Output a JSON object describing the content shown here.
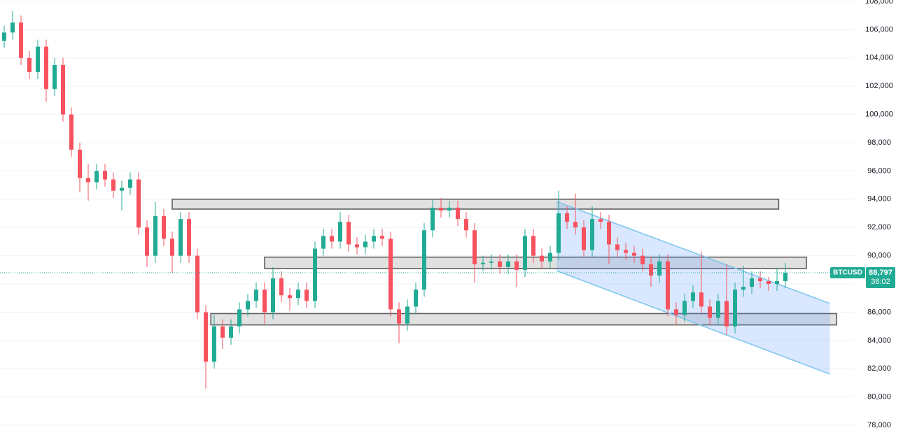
{
  "chart_data": {
    "type": "candlestick",
    "up_color": "#22ab94",
    "down_color": "#f7525f",
    "ylim": [
      77310,
      108100
    ],
    "yticks": [
      {
        "value": 78000,
        "label": "78,000"
      },
      {
        "value": 80000,
        "label": "80,000"
      },
      {
        "value": 82000,
        "label": "82,000"
      },
      {
        "value": 84000,
        "label": "84,000"
      },
      {
        "value": 86000,
        "label": "86,000"
      },
      {
        "value": 88000,
        "label": "88,000"
      },
      {
        "value": 90000,
        "label": "90,000"
      },
      {
        "value": 92000,
        "label": "92,000"
      },
      {
        "value": 94000,
        "label": "94,000"
      },
      {
        "value": 96000,
        "label": "96,000"
      },
      {
        "value": 98000,
        "label": "98,000"
      },
      {
        "value": 100000,
        "label": "100,000"
      },
      {
        "value": 102000,
        "label": "102,000"
      },
      {
        "value": 104000,
        "label": "104,000"
      },
      {
        "value": 106000,
        "label": "106,000"
      },
      {
        "value": 108000,
        "label": "108,000"
      }
    ],
    "grid": true,
    "candles": [
      [
        105200,
        106300,
        104700,
        105800
      ],
      [
        105800,
        107300,
        105300,
        106500
      ],
      [
        106500,
        107000,
        103500,
        104000
      ],
      [
        104000,
        104500,
        102500,
        103000
      ],
      [
        103000,
        105300,
        102500,
        104800
      ],
      [
        104800,
        105300,
        100900,
        101800
      ],
      [
        101800,
        104000,
        101300,
        103500
      ],
      [
        103500,
        104000,
        99500,
        100000
      ],
      [
        100000,
        100500,
        97000,
        97500
      ],
      [
        97500,
        98000,
        94500,
        95500
      ],
      [
        95500,
        96500,
        93900,
        95200
      ],
      [
        95200,
        96500,
        94700,
        96000
      ],
      [
        96000,
        96500,
        94900,
        95400
      ],
      [
        95400,
        95900,
        94100,
        94600
      ],
      [
        94600,
        95300,
        93200,
        94800
      ],
      [
        94800,
        95900,
        94300,
        95400
      ],
      [
        95400,
        95900,
        91500,
        92000
      ],
      [
        92000,
        92500,
        89200,
        90000
      ],
      [
        90000,
        93800,
        89500,
        92800
      ],
      [
        92800,
        93300,
        90700,
        91200
      ],
      [
        91200,
        91700,
        88800,
        90000
      ],
      [
        90000,
        93100,
        89500,
        92600
      ],
      [
        92600,
        93100,
        89500,
        90000
      ],
      [
        90000,
        90500,
        85500,
        86000
      ],
      [
        86000,
        86500,
        80600,
        82500
      ],
      [
        82500,
        85800,
        82000,
        85000
      ],
      [
        85000,
        85500,
        83400,
        84200
      ],
      [
        84200,
        85500,
        83700,
        85000
      ],
      [
        85000,
        86700,
        84500,
        86200
      ],
      [
        86200,
        87300,
        85700,
        86800
      ],
      [
        86800,
        88100,
        86300,
        87600
      ],
      [
        87600,
        88100,
        85200,
        86000
      ],
      [
        86000,
        89200,
        85500,
        88400
      ],
      [
        88400,
        88900,
        86700,
        87200
      ],
      [
        87200,
        87700,
        86100,
        87000
      ],
      [
        87000,
        88100,
        86500,
        87600
      ],
      [
        87600,
        88100,
        86300,
        86800
      ],
      [
        86800,
        91000,
        86300,
        90500
      ],
      [
        90500,
        91900,
        90000,
        91400
      ],
      [
        91400,
        91900,
        90500,
        91000
      ],
      [
        91000,
        93100,
        90500,
        92400
      ],
      [
        92400,
        92900,
        90300,
        90800
      ],
      [
        90800,
        91300,
        90100,
        90600
      ],
      [
        90600,
        91500,
        90100,
        91000
      ],
      [
        91000,
        91900,
        90500,
        91400
      ],
      [
        91400,
        91900,
        90700,
        91200
      ],
      [
        91200,
        91700,
        85700,
        86200
      ],
      [
        86200,
        86700,
        83800,
        85200
      ],
      [
        85200,
        86900,
        84700,
        86400
      ],
      [
        86400,
        88100,
        85900,
        87600
      ],
      [
        87600,
        92300,
        87100,
        91800
      ],
      [
        91800,
        94000,
        91300,
        93400
      ],
      [
        93400,
        94100,
        92700,
        93200
      ],
      [
        93200,
        93900,
        92700,
        93400
      ],
      [
        93400,
        93900,
        92100,
        92600
      ],
      [
        92600,
        93100,
        91300,
        91800
      ],
      [
        91800,
        92300,
        88100,
        89400
      ],
      [
        89400,
        90000,
        88900,
        89500
      ],
      [
        89500,
        90100,
        89000,
        89600
      ],
      [
        89600,
        90100,
        88700,
        89200
      ],
      [
        89200,
        90100,
        88700,
        89600
      ],
      [
        89600,
        90100,
        87800,
        89000
      ],
      [
        89000,
        91900,
        88500,
        91400
      ],
      [
        91400,
        91900,
        89500,
        90000
      ],
      [
        90000,
        90500,
        89100,
        89600
      ],
      [
        89600,
        90700,
        89100,
        90200
      ],
      [
        90200,
        94600,
        89700,
        93000
      ],
      [
        93000,
        93500,
        91900,
        92400
      ],
      [
        92400,
        94400,
        91500,
        92000
      ],
      [
        92000,
        92500,
        89900,
        90400
      ],
      [
        90400,
        93500,
        89900,
        92600
      ],
      [
        92600,
        93100,
        91900,
        92400
      ],
      [
        92400,
        92900,
        89400,
        90800
      ],
      [
        90800,
        91300,
        89900,
        90400
      ],
      [
        90400,
        90900,
        89700,
        90200
      ],
      [
        90200,
        90700,
        89500,
        90000
      ],
      [
        90000,
        90500,
        88900,
        89400
      ],
      [
        89400,
        89900,
        87800,
        88600
      ],
      [
        88600,
        90100,
        88100,
        89600
      ],
      [
        89600,
        90100,
        85700,
        86200
      ],
      [
        86200,
        86700,
        85100,
        85800
      ],
      [
        85800,
        87300,
        85300,
        86800
      ],
      [
        86800,
        87900,
        86300,
        87400
      ],
      [
        87400,
        90300,
        85900,
        86400
      ],
      [
        86400,
        86900,
        85100,
        85600
      ],
      [
        85600,
        87300,
        85100,
        86800
      ],
      [
        86800,
        89400,
        84400,
        85000
      ],
      [
        85000,
        88100,
        84500,
        87600
      ],
      [
        87600,
        89300,
        87100,
        87800
      ],
      [
        87800,
        88900,
        87300,
        88400
      ],
      [
        88400,
        88900,
        87700,
        88200
      ],
      [
        88200,
        88500,
        87500,
        88000
      ],
      [
        88000,
        89100,
        87500,
        88200
      ],
      [
        88200,
        89500,
        87700,
        88797
      ]
    ],
    "zones": [
      {
        "x": [
          20,
          92.2
        ],
        "y": [
          93300,
          94000
        ]
      },
      {
        "x": [
          31,
          95.5
        ],
        "y": [
          89100,
          89900
        ]
      },
      {
        "x": [
          24.6,
          99.1
        ],
        "y": [
          85100,
          85900
        ]
      }
    ],
    "channel": {
      "x": [
        65.75,
        98.3
      ],
      "upper": [
        93840,
        86620
      ],
      "lower": [
        88940,
        81620
      ]
    },
    "last_price": {
      "symbol": "BTCUSD",
      "value": 88797,
      "label": "88,797",
      "countdown": "36:02"
    }
  }
}
